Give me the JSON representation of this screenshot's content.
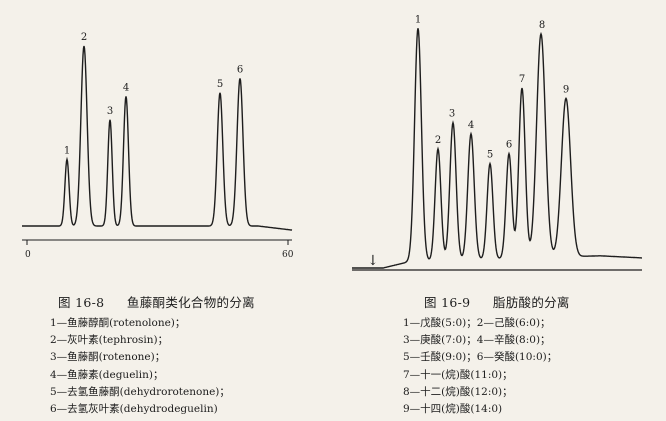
{
  "fig_left": {
    "chart_data": {
      "type": "line",
      "title": "",
      "x_ticks": [
        "0",
        "60"
      ],
      "peaks": [
        {
          "label": "1",
          "height": 0.37
        },
        {
          "label": "2",
          "height": 1.0
        },
        {
          "label": "3",
          "height": 0.59
        },
        {
          "label": "4",
          "height": 0.72
        },
        {
          "label": "5",
          "height": 0.74
        },
        {
          "label": "6",
          "height": 0.82
        }
      ]
    },
    "caption": {
      "number": "图 16-8",
      "title": "鱼藤酮类化合物的分离"
    },
    "legend": [
      "1—鱼藤醇酮(rotenolone)；",
      "2—灰叶素(tephrosin)；",
      "3—鱼藤酮(rotenone)；",
      "4—鱼藤素(deguelin)；",
      "5—去氢鱼藤酮(dehydrorotenone)；",
      "6—去氢灰叶素(dehydrodeguelin)"
    ]
  },
  "fig_right": {
    "chart_data": {
      "type": "line",
      "title": "",
      "injection_marker": "↓",
      "peaks": [
        {
          "label": "1",
          "height": 1.0
        },
        {
          "label": "2",
          "height": 0.48
        },
        {
          "label": "3",
          "height": 0.59
        },
        {
          "label": "4",
          "height": 0.54
        },
        {
          "label": "5",
          "height": 0.41
        },
        {
          "label": "6",
          "height": 0.45
        },
        {
          "label": "7",
          "height": 0.73
        },
        {
          "label": "8",
          "height": 0.96
        },
        {
          "label": "9",
          "height": 0.68
        }
      ]
    },
    "caption": {
      "number": "图 16-9",
      "title": "脂肪酸的分离"
    },
    "legend": [
      "1—戊酸(5:0)；2—己酸(6:0)；",
      "3—庚酸(7:0)；4—辛酸(8:0)；",
      "5—壬酸(9:0)；6—癸酸(10:0)；",
      "7—十一(烷)酸(11:0)；",
      "8—十二(烷)酸(12:0)；",
      "9—十四(烷)酸(14:0)"
    ]
  }
}
